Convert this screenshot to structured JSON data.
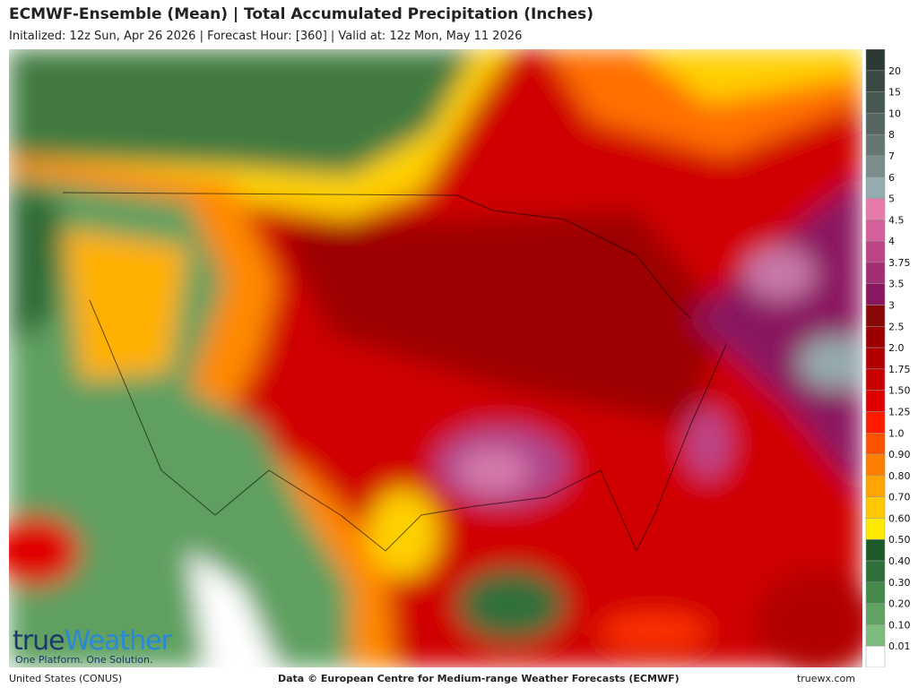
{
  "header": {
    "title": "ECMWF-Ensemble (Mean)  | Total Accumulated Precipitation (Inches)",
    "subtitle": "Initalized: 12z Sun, Apr 26 2026  |  Forecast Hour: [360]  |  Valid at: 12z Mon, May 11 2026"
  },
  "legend": {
    "labels": [
      "20",
      "15",
      "10",
      "8",
      "7",
      "6",
      "5",
      "4.5",
      "4",
      "3.75",
      "3.5",
      "3",
      "2.5",
      "2.0",
      "1.75",
      "1.50",
      "1.25",
      "1.0",
      "0.90",
      "0.80",
      "0.70",
      "0.60",
      "0.50",
      "0.40",
      "0.30",
      "0.20",
      "0.10",
      "0.01"
    ],
    "colors": [
      "#2b3a33",
      "#3a4942",
      "#475752",
      "#566662",
      "#667773",
      "#7a8d8a",
      "#95abad",
      "#e87aaa",
      "#d45f9a",
      "#bd4586",
      "#a22e74",
      "#8a1860",
      "#880808",
      "#9c0000",
      "#b20000",
      "#c80000",
      "#e00000",
      "#ff1a00",
      "#ff5200",
      "#ff7e00",
      "#ffa400",
      "#ffc800",
      "#ffea00",
      "#1f5a2b",
      "#30703a",
      "#468a4a",
      "#60a262",
      "#7dbc7c",
      "#ffffff"
    ]
  },
  "logo": {
    "part1": "true",
    "part2": "Weather",
    "tagline": "One Platform. One Solution."
  },
  "footer": {
    "left": "United States (CONUS)",
    "center": "Data © European Centre for Medium-range Weather Forecasts (ECMWF)",
    "right": "truewx.com"
  }
}
